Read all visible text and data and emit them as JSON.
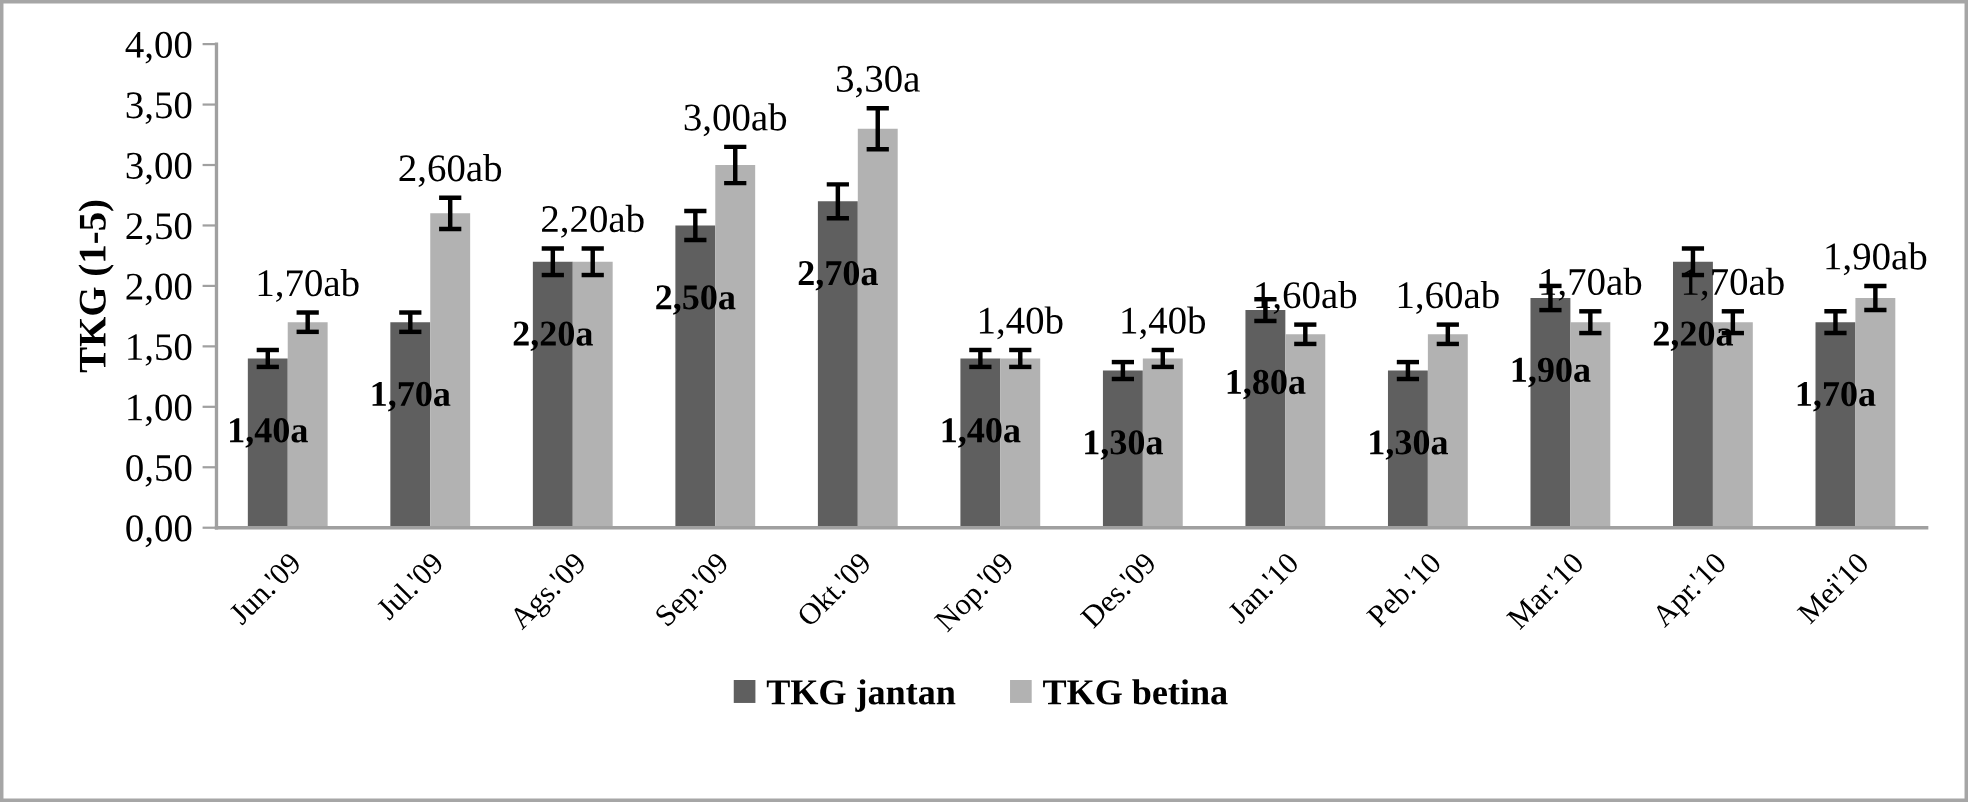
{
  "chart_data": {
    "type": "bar",
    "ylabel": "TKG (1-5)",
    "categories": [
      "Jun.'09",
      "Jul.'09",
      "Ags.'09",
      "Sep.'09",
      "Okt.'09",
      "Nop.'09",
      "Des.'09",
      "Jan.'10",
      "Peb.'10",
      "Mar.'10",
      "Apr.'10",
      "Mei'10"
    ],
    "series": [
      {
        "name": "TKG jantan",
        "color": "#5f5f5f",
        "values": [
          1.4,
          1.7,
          2.2,
          2.5,
          2.7,
          1.4,
          1.3,
          1.8,
          1.3,
          1.9,
          2.2,
          1.7
        ],
        "errors": [
          0.07,
          0.08,
          0.11,
          0.12,
          0.14,
          0.07,
          0.07,
          0.09,
          0.07,
          0.1,
          0.11,
          0.09
        ],
        "value_labels": [
          "1,40a",
          "1,70a",
          "2,20a",
          "2,50a",
          "2,70a",
          "1,40a",
          "1,30a",
          "1,80a",
          "1,30a",
          "1,90a",
          "2,20a",
          "1,70a"
        ]
      },
      {
        "name": "TKG betina",
        "color": "#b2b2b2",
        "values": [
          1.7,
          2.6,
          2.2,
          3.0,
          3.3,
          1.4,
          1.4,
          1.6,
          1.6,
          1.7,
          1.7,
          1.9
        ],
        "errors": [
          0.08,
          0.13,
          0.11,
          0.15,
          0.17,
          0.07,
          0.07,
          0.08,
          0.08,
          0.09,
          0.09,
          0.1
        ],
        "value_labels": [
          "1,70ab",
          "2,60ab",
          "2,20ab",
          "3,00ab",
          "3,30a",
          "1,40b",
          "1,40b",
          "1,60ab",
          "1,60ab",
          "1,70ab",
          "1,70ab",
          "1,90ab"
        ]
      }
    ],
    "ylim": [
      0,
      4
    ],
    "yticks": [
      {
        "value": 0,
        "label": "0,00"
      },
      {
        "value": 0.5,
        "label": "0,50"
      },
      {
        "value": 1,
        "label": "1,00"
      },
      {
        "value": 1.5,
        "label": "1,50"
      },
      {
        "value": 2,
        "label": "2,00"
      },
      {
        "value": 2.5,
        "label": "2,50"
      },
      {
        "value": 3,
        "label": "3,00"
      },
      {
        "value": 3.5,
        "label": "3,50"
      },
      {
        "value": 4,
        "label": "4,00"
      }
    ],
    "legend": "bottom"
  }
}
